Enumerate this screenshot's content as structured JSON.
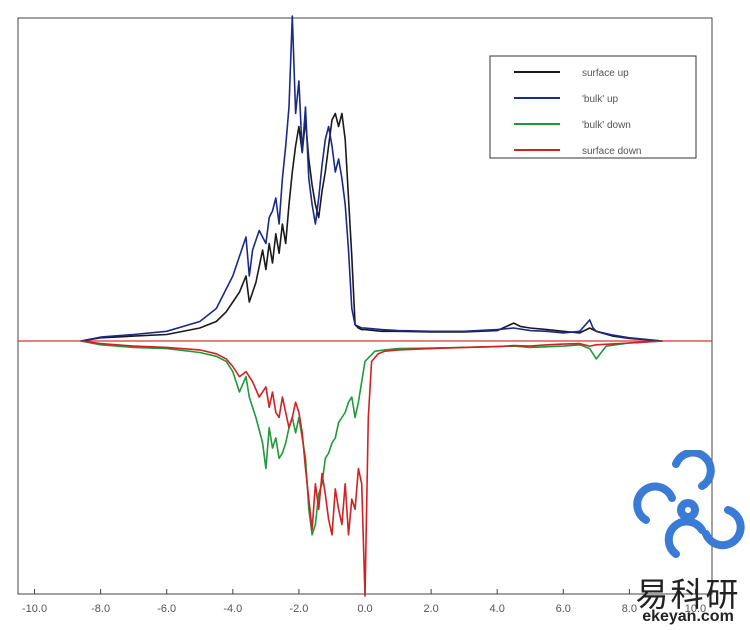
{
  "chart_data": {
    "type": "line",
    "title": "",
    "xlabel": "",
    "ylabel": "",
    "xlim": [
      -10.5,
      10.5
    ],
    "xticks": [
      "-10.0",
      "-8.0",
      "-6.0",
      "-4.0",
      "-2.0",
      "0.0",
      "2.0",
      "4.0",
      "6.0",
      "8.0",
      "10.0"
    ],
    "ylim": [
      -1.0,
      1.0
    ],
    "grid": false,
    "legend_position": "top-right",
    "series": [
      {
        "name": "surface up",
        "color": "#1a1a1a",
        "x": [
          -8.6,
          -8.0,
          -7.0,
          -6.0,
          -5.0,
          -4.5,
          -4.2,
          -4.0,
          -3.8,
          -3.6,
          -3.5,
          -3.3,
          -3.1,
          -3.0,
          -2.9,
          -2.8,
          -2.7,
          -2.6,
          -2.5,
          -2.4,
          -2.3,
          -2.2,
          -2.1,
          -2.0,
          -1.9,
          -1.8,
          -1.7,
          -1.6,
          -1.5,
          -1.4,
          -1.3,
          -1.2,
          -1.1,
          -1.0,
          -0.9,
          -0.8,
          -0.7,
          -0.6,
          -0.5,
          -0.4,
          -0.3,
          -0.2,
          -0.1,
          0.0,
          0.5,
          1.0,
          2.0,
          3.0,
          4.0,
          4.5,
          4.7,
          5.0,
          5.5,
          6.0,
          6.5,
          6.8,
          7.0,
          7.5,
          8.0,
          9.0
        ],
        "y": [
          0.0,
          0.01,
          0.015,
          0.02,
          0.04,
          0.06,
          0.09,
          0.12,
          0.15,
          0.2,
          0.12,
          0.18,
          0.28,
          0.22,
          0.3,
          0.24,
          0.33,
          0.27,
          0.36,
          0.3,
          0.42,
          0.52,
          0.6,
          0.66,
          0.58,
          0.68,
          0.56,
          0.48,
          0.42,
          0.38,
          0.46,
          0.52,
          0.6,
          0.68,
          0.7,
          0.66,
          0.7,
          0.62,
          0.44,
          0.26,
          0.05,
          0.04,
          0.035,
          0.035,
          0.03,
          0.03,
          0.028,
          0.028,
          0.032,
          0.055,
          0.045,
          0.04,
          0.035,
          0.03,
          0.025,
          0.04,
          0.03,
          0.015,
          0.008,
          0.0
        ]
      },
      {
        "name": "'bulk' up",
        "color": "#1a2a8a",
        "x": [
          -8.6,
          -8.0,
          -7.0,
          -6.0,
          -5.0,
          -4.5,
          -4.2,
          -4.0,
          -3.8,
          -3.6,
          -3.5,
          -3.4,
          -3.2,
          -3.0,
          -2.9,
          -2.8,
          -2.7,
          -2.6,
          -2.5,
          -2.4,
          -2.3,
          -2.2,
          -2.1,
          -2.0,
          -1.9,
          -1.8,
          -1.7,
          -1.6,
          -1.5,
          -1.4,
          -1.3,
          -1.2,
          -1.1,
          -1.0,
          -0.9,
          -0.8,
          -0.7,
          -0.6,
          -0.5,
          -0.4,
          -0.3,
          -0.2,
          -0.1,
          0.0,
          0.5,
          1.0,
          2.0,
          3.0,
          4.0,
          4.5,
          5.0,
          5.5,
          6.0,
          6.5,
          6.8,
          6.9,
          7.0,
          7.5,
          8.0,
          9.0
        ],
        "y": [
          0.0,
          0.012,
          0.02,
          0.03,
          0.06,
          0.1,
          0.16,
          0.2,
          0.26,
          0.32,
          0.2,
          0.28,
          0.34,
          0.3,
          0.38,
          0.4,
          0.44,
          0.36,
          0.5,
          0.6,
          0.72,
          1.0,
          0.7,
          0.8,
          0.58,
          0.72,
          0.5,
          0.42,
          0.36,
          0.44,
          0.54,
          0.62,
          0.66,
          0.6,
          0.52,
          0.56,
          0.5,
          0.42,
          0.28,
          0.1,
          0.05,
          0.045,
          0.04,
          0.04,
          0.035,
          0.032,
          0.03,
          0.03,
          0.035,
          0.04,
          0.032,
          0.03,
          0.025,
          0.03,
          0.065,
          0.04,
          0.03,
          0.018,
          0.01,
          0.0
        ]
      },
      {
        "name": "'bulk' down",
        "color": "#1f9a3a",
        "x": [
          -8.6,
          -8.0,
          -7.0,
          -6.0,
          -5.0,
          -4.5,
          -4.2,
          -4.0,
          -3.9,
          -3.8,
          -3.6,
          -3.5,
          -3.3,
          -3.1,
          -3.0,
          -2.9,
          -2.8,
          -2.7,
          -2.6,
          -2.5,
          -2.4,
          -2.3,
          -2.2,
          -2.1,
          -2.0,
          -1.9,
          -1.8,
          -1.7,
          -1.6,
          -1.5,
          -1.4,
          -1.3,
          -1.2,
          -1.1,
          -1.0,
          -0.9,
          -0.8,
          -0.7,
          -0.6,
          -0.5,
          -0.4,
          -0.3,
          -0.2,
          -0.1,
          0.0,
          0.3,
          0.6,
          1.0,
          2.0,
          3.0,
          4.0,
          4.5,
          5.0,
          6.0,
          6.5,
          6.8,
          7.0,
          7.3,
          8.0,
          9.0
        ],
        "y": [
          0.0,
          -0.015,
          -0.025,
          -0.03,
          -0.045,
          -0.06,
          -0.08,
          -0.12,
          -0.16,
          -0.2,
          -0.14,
          -0.22,
          -0.3,
          -0.4,
          -0.5,
          -0.34,
          -0.42,
          -0.38,
          -0.46,
          -0.44,
          -0.4,
          -0.34,
          -0.3,
          -0.36,
          -0.3,
          -0.38,
          -0.46,
          -0.66,
          -0.76,
          -0.72,
          -0.6,
          -0.56,
          -0.46,
          -0.44,
          -0.4,
          -0.38,
          -0.32,
          -0.3,
          -0.28,
          -0.24,
          -0.22,
          -0.3,
          -0.24,
          -0.16,
          -0.08,
          -0.04,
          -0.035,
          -0.03,
          -0.028,
          -0.025,
          -0.022,
          -0.02,
          -0.025,
          -0.02,
          -0.015,
          -0.03,
          -0.07,
          -0.02,
          -0.008,
          0.0
        ]
      },
      {
        "name": "surface down",
        "color": "#d42020",
        "x": [
          -8.6,
          -8.0,
          -7.0,
          -6.0,
          -5.0,
          -4.5,
          -4.2,
          -4.0,
          -3.8,
          -3.6,
          -3.4,
          -3.2,
          -3.0,
          -2.9,
          -2.8,
          -2.7,
          -2.6,
          -2.5,
          -2.4,
          -2.3,
          -2.2,
          -2.1,
          -2.0,
          -1.9,
          -1.8,
          -1.7,
          -1.6,
          -1.5,
          -1.4,
          -1.3,
          -1.2,
          -1.1,
          -1.0,
          -0.9,
          -0.8,
          -0.7,
          -0.6,
          -0.5,
          -0.4,
          -0.3,
          -0.2,
          -0.1,
          0.0,
          0.1,
          0.2,
          0.4,
          0.6,
          1.0,
          2.0,
          3.0,
          4.0,
          4.5,
          5.0,
          5.5,
          6.0,
          6.5,
          6.8,
          7.0,
          8.0,
          9.0
        ],
        "y": [
          0.0,
          -0.01,
          -0.02,
          -0.025,
          -0.035,
          -0.05,
          -0.07,
          -0.1,
          -0.14,
          -0.12,
          -0.16,
          -0.22,
          -0.18,
          -0.26,
          -0.2,
          -0.28,
          -0.3,
          -0.22,
          -0.28,
          -0.34,
          -0.3,
          -0.24,
          -0.28,
          -0.36,
          -0.5,
          -0.62,
          -0.74,
          -0.56,
          -0.66,
          -0.52,
          -0.6,
          -0.7,
          -0.76,
          -0.58,
          -0.66,
          -0.72,
          -0.56,
          -0.76,
          -0.62,
          -0.66,
          -0.5,
          -0.56,
          -1.0,
          -0.3,
          -0.08,
          -0.05,
          -0.04,
          -0.035,
          -0.03,
          -0.025,
          -0.022,
          -0.018,
          -0.02,
          -0.015,
          -0.012,
          -0.01,
          -0.02,
          -0.015,
          -0.008,
          0.0
        ]
      }
    ]
  },
  "watermark": {
    "text_cn": "易科研",
    "url": "ekeyan.com",
    "color": "#3a7bd5"
  }
}
